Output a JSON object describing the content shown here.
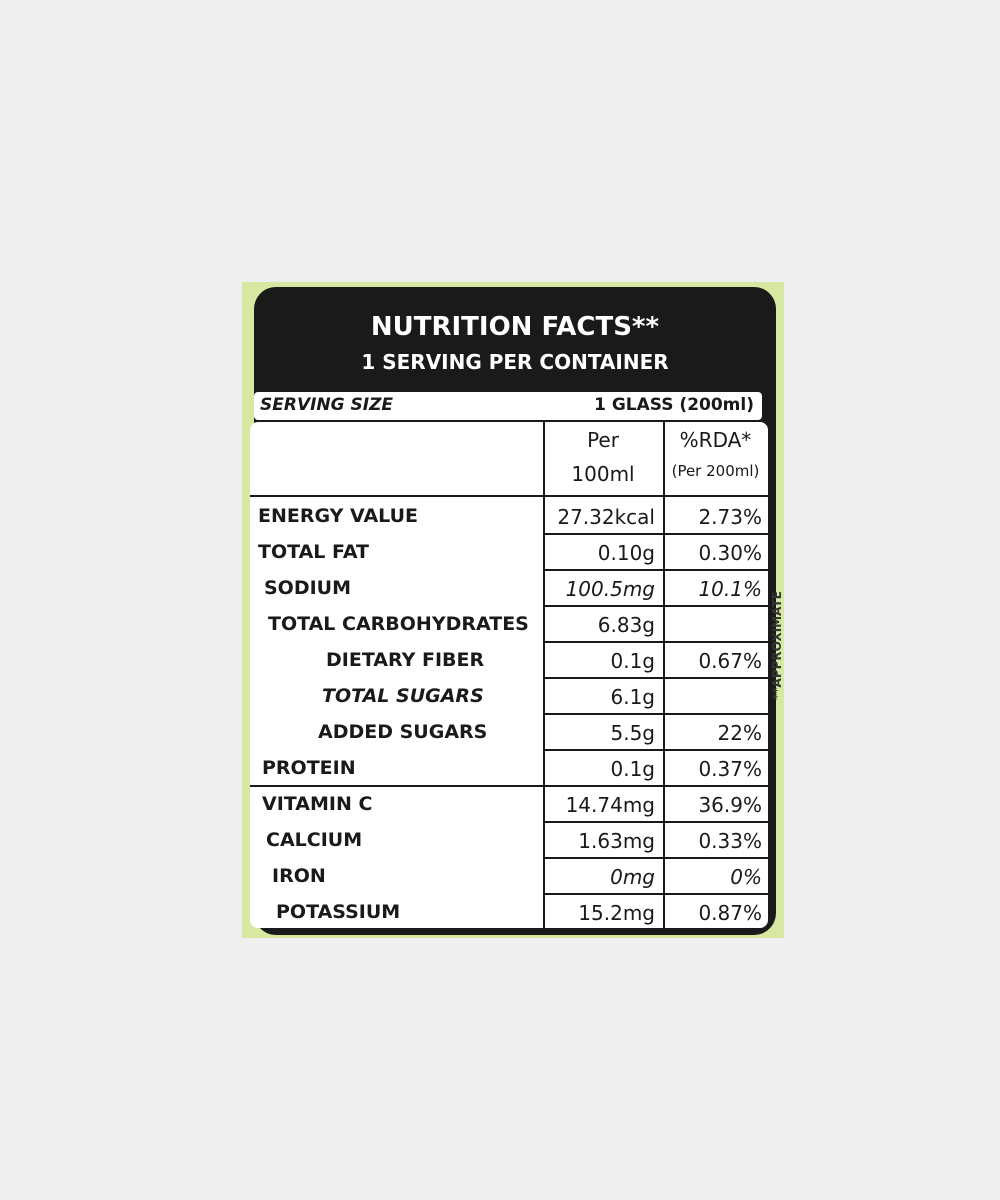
{
  "header": {
    "title": "NUTRITION FACTS**",
    "subtitle": "1 SERVING PER CONTAINER"
  },
  "serving": {
    "label": "SERVING SIZE",
    "value": "1 GLASS (200ml)"
  },
  "table": {
    "columns": [
      [
        "Per",
        "100ml"
      ],
      [
        "%RDA*",
        "(Per 200ml)"
      ]
    ],
    "rows": [
      [
        "ENERGY VALUE",
        "27.32kcal",
        "2.73%"
      ],
      [
        "TOTAL FAT",
        "0.10g",
        "0.30%"
      ],
      [
        "SODIUM",
        "100.5mg",
        "10.1%"
      ],
      [
        "TOTAL CARBOHYDRATES",
        "6.83g",
        null
      ],
      [
        "DIETARY FIBER",
        "0.1g",
        "0.67%"
      ],
      [
        "TOTAL SUGARS",
        "6.1g",
        null
      ],
      [
        "ADDED SUGARS",
        "5.5g",
        "22%"
      ],
      [
        "PROTEIN",
        "0.1g",
        "0.37%"
      ],
      [
        "VITAMIN C",
        "14.74mg",
        "36.9%"
      ],
      [
        "CALCIUM",
        "1.63mg",
        "0.33%"
      ],
      [
        "IRON",
        "0mg",
        "0%"
      ],
      [
        "POTASSIUM",
        "15.2mg",
        "0.87%"
      ]
    ]
  },
  "side_note": "**APPROXIMATE"
}
